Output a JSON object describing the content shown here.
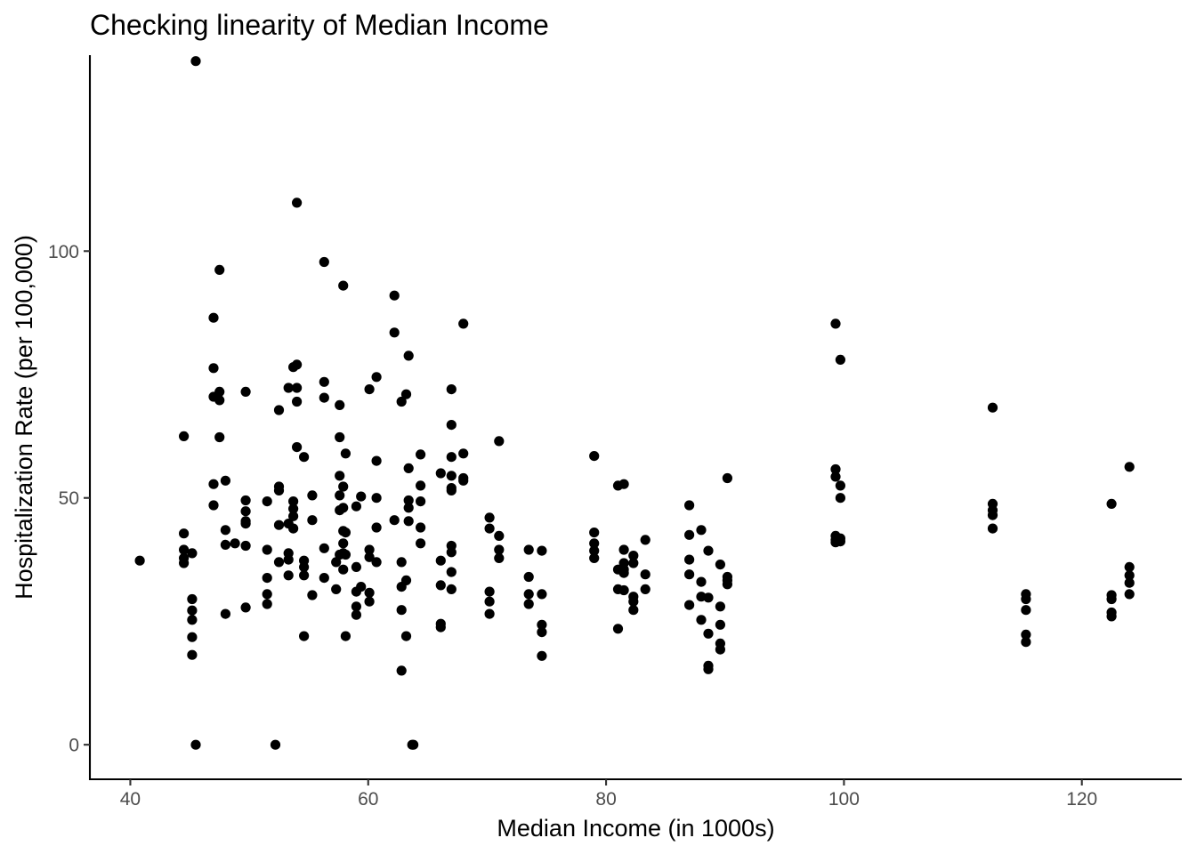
{
  "chart_data": {
    "type": "scatter",
    "title": "Checking linearity of Median Income",
    "xlabel": "Median Income (in 1000s)",
    "ylabel": "Hospitalization Rate (per 100,000)",
    "xlim": [
      36.6,
      128.4
    ],
    "ylim": [
      -7,
      139.7
    ],
    "xticks": [
      40,
      60,
      80,
      100,
      120
    ],
    "yticks": [
      0,
      50,
      100
    ],
    "grid": false,
    "legend": "none",
    "point_color": "#000000",
    "points": [
      [
        40.8,
        37.3
      ],
      [
        44.5,
        62.5
      ],
      [
        44.5,
        42.8
      ],
      [
        44.5,
        39.5
      ],
      [
        44.5,
        37.8
      ],
      [
        44.5,
        36.8
      ],
      [
        45.2,
        38.8
      ],
      [
        45.2,
        29.5
      ],
      [
        45.2,
        27.2
      ],
      [
        45.2,
        25.3
      ],
      [
        45.2,
        21.8
      ],
      [
        45.2,
        18.2
      ],
      [
        45.5,
        138.5
      ],
      [
        45.5,
        0
      ],
      [
        47.0,
        86.5
      ],
      [
        47.0,
        76.3
      ],
      [
        47.0,
        70.5
      ],
      [
        47.0,
        52.8
      ],
      [
        47.0,
        48.5
      ],
      [
        47.5,
        96.2
      ],
      [
        47.5,
        71.5
      ],
      [
        47.5,
        69.8
      ],
      [
        47.5,
        62.3
      ],
      [
        48.0,
        53.5
      ],
      [
        48.0,
        43.5
      ],
      [
        48.0,
        40.5
      ],
      [
        48.0,
        26.5
      ],
      [
        48.8,
        40.8
      ],
      [
        49.7,
        71.5
      ],
      [
        49.7,
        49.5
      ],
      [
        49.7,
        47.3
      ],
      [
        49.7,
        45.3
      ],
      [
        49.7,
        44.8
      ],
      [
        49.7,
        40.3
      ],
      [
        49.7,
        27.8
      ],
      [
        51.5,
        49.3
      ],
      [
        51.5,
        39.5
      ],
      [
        51.5,
        33.8
      ],
      [
        51.5,
        30.5
      ],
      [
        51.5,
        28.5
      ],
      [
        52.2,
        0
      ],
      [
        52.5,
        67.8
      ],
      [
        52.5,
        52.3
      ],
      [
        52.5,
        51.5
      ],
      [
        52.5,
        44.5
      ],
      [
        52.5,
        37.0
      ],
      [
        53.3,
        72.3
      ],
      [
        53.3,
        44.8
      ],
      [
        53.3,
        38.8
      ],
      [
        53.3,
        37.5
      ],
      [
        53.3,
        34.3
      ],
      [
        53.7,
        76.5
      ],
      [
        53.7,
        49.3
      ],
      [
        53.7,
        47.8
      ],
      [
        53.7,
        46.3
      ],
      [
        53.7,
        43.8
      ],
      [
        54.0,
        109.8
      ],
      [
        54.0,
        77.0
      ],
      [
        54.0,
        72.3
      ],
      [
        54.0,
        69.5
      ],
      [
        54.0,
        60.3
      ],
      [
        54.6,
        58.3
      ],
      [
        54.6,
        37.3
      ],
      [
        54.6,
        36.0
      ],
      [
        54.6,
        34.3
      ],
      [
        54.6,
        22.0
      ],
      [
        55.3,
        50.5
      ],
      [
        55.3,
        45.5
      ],
      [
        55.3,
        30.3
      ],
      [
        56.3,
        97.8
      ],
      [
        56.3,
        73.5
      ],
      [
        56.3,
        70.3
      ],
      [
        56.3,
        39.8
      ],
      [
        56.3,
        33.8
      ],
      [
        57.3,
        37.0
      ],
      [
        57.3,
        31.5
      ],
      [
        57.6,
        68.8
      ],
      [
        57.6,
        62.3
      ],
      [
        57.6,
        54.5
      ],
      [
        57.6,
        50.5
      ],
      [
        57.6,
        47.5
      ],
      [
        57.6,
        38.5
      ],
      [
        57.9,
        93.0
      ],
      [
        57.9,
        52.3
      ],
      [
        57.9,
        48.0
      ],
      [
        57.9,
        43.3
      ],
      [
        57.9,
        40.8
      ],
      [
        57.9,
        38.8
      ],
      [
        57.9,
        35.5
      ],
      [
        58.1,
        59.0
      ],
      [
        58.1,
        43.0
      ],
      [
        58.1,
        38.5
      ],
      [
        58.1,
        22.0
      ],
      [
        59.0,
        48.3
      ],
      [
        59.0,
        36.0
      ],
      [
        59.0,
        31.0
      ],
      [
        59.0,
        28.0
      ],
      [
        59.0,
        26.3
      ],
      [
        59.4,
        50.3
      ],
      [
        59.4,
        32.0
      ],
      [
        60.1,
        72.0
      ],
      [
        60.1,
        39.5
      ],
      [
        60.1,
        38.0
      ],
      [
        60.1,
        30.8
      ],
      [
        60.1,
        29.0
      ],
      [
        60.7,
        74.5
      ],
      [
        60.7,
        57.5
      ],
      [
        60.7,
        50.0
      ],
      [
        60.7,
        44.0
      ],
      [
        60.7,
        37.0
      ],
      [
        62.2,
        91.0
      ],
      [
        62.2,
        83.5
      ],
      [
        62.2,
        45.5
      ],
      [
        62.8,
        69.5
      ],
      [
        62.8,
        37.0
      ],
      [
        62.8,
        32.0
      ],
      [
        62.8,
        27.3
      ],
      [
        62.8,
        15.0
      ],
      [
        63.2,
        71.0
      ],
      [
        63.2,
        33.3
      ],
      [
        63.2,
        22.0
      ],
      [
        63.4,
        78.8
      ],
      [
        63.4,
        56.0
      ],
      [
        63.4,
        49.5
      ],
      [
        63.4,
        48.0
      ],
      [
        63.4,
        45.3
      ],
      [
        63.7,
        0
      ],
      [
        63.8,
        0
      ],
      [
        64.4,
        58.8
      ],
      [
        64.4,
        52.5
      ],
      [
        64.4,
        49.3
      ],
      [
        64.4,
        44.0
      ],
      [
        64.4,
        40.8
      ],
      [
        66.1,
        55.0
      ],
      [
        66.1,
        37.3
      ],
      [
        66.1,
        32.3
      ],
      [
        66.1,
        24.5
      ],
      [
        66.1,
        23.8
      ],
      [
        67.0,
        72.0
      ],
      [
        67.0,
        64.8
      ],
      [
        67.0,
        58.3
      ],
      [
        67.0,
        54.5
      ],
      [
        67.0,
        52.0
      ],
      [
        67.0,
        51.5
      ],
      [
        67.0,
        40.3
      ],
      [
        67.0,
        39.0
      ],
      [
        67.0,
        35.0
      ],
      [
        67.0,
        31.5
      ],
      [
        68.0,
        85.3
      ],
      [
        68.0,
        59.0
      ],
      [
        68.0,
        54.0
      ],
      [
        68.0,
        53.5
      ],
      [
        70.2,
        46.0
      ],
      [
        70.2,
        43.8
      ],
      [
        70.2,
        31.0
      ],
      [
        70.2,
        29.0
      ],
      [
        70.2,
        26.5
      ],
      [
        71.0,
        61.5
      ],
      [
        71.0,
        42.3
      ],
      [
        71.0,
        39.5
      ],
      [
        71.0,
        37.8
      ],
      [
        73.5,
        39.5
      ],
      [
        73.5,
        34.0
      ],
      [
        73.5,
        30.5
      ],
      [
        73.5,
        28.5
      ],
      [
        74.6,
        39.3
      ],
      [
        74.6,
        30.5
      ],
      [
        74.6,
        24.3
      ],
      [
        74.6,
        22.8
      ],
      [
        74.6,
        18.0
      ],
      [
        79.0,
        58.5
      ],
      [
        79.0,
        43.0
      ],
      [
        79.0,
        40.8
      ],
      [
        79.0,
        39.3
      ],
      [
        79.0,
        37.8
      ],
      [
        81.0,
        52.5
      ],
      [
        81.0,
        35.5
      ],
      [
        81.0,
        31.5
      ],
      [
        81.0,
        23.5
      ],
      [
        81.5,
        52.8
      ],
      [
        81.5,
        39.5
      ],
      [
        81.5,
        36.8
      ],
      [
        81.5,
        35.5
      ],
      [
        81.5,
        34.8
      ],
      [
        81.5,
        31.3
      ],
      [
        82.3,
        38.3
      ],
      [
        82.3,
        36.8
      ],
      [
        82.3,
        30.0
      ],
      [
        82.3,
        29.0
      ],
      [
        82.3,
        27.3
      ],
      [
        83.3,
        41.5
      ],
      [
        83.3,
        34.5
      ],
      [
        83.3,
        31.5
      ],
      [
        87.0,
        48.5
      ],
      [
        87.0,
        42.5
      ],
      [
        87.0,
        37.5
      ],
      [
        87.0,
        34.5
      ],
      [
        87.0,
        28.3
      ],
      [
        88.0,
        43.5
      ],
      [
        88.0,
        33.0
      ],
      [
        88.0,
        30.0
      ],
      [
        88.0,
        25.3
      ],
      [
        88.6,
        39.3
      ],
      [
        88.6,
        29.8
      ],
      [
        88.6,
        22.5
      ],
      [
        88.6,
        16.0
      ],
      [
        88.6,
        15.3
      ],
      [
        89.6,
        36.5
      ],
      [
        89.6,
        28.0
      ],
      [
        89.6,
        24.3
      ],
      [
        89.6,
        20.5
      ],
      [
        89.6,
        19.3
      ],
      [
        90.2,
        54.0
      ],
      [
        90.2,
        34.0
      ],
      [
        90.2,
        33.3
      ],
      [
        90.2,
        32.5
      ],
      [
        99.3,
        85.3
      ],
      [
        99.3,
        55.8
      ],
      [
        99.3,
        54.3
      ],
      [
        99.3,
        42.3
      ],
      [
        99.3,
        41.5
      ],
      [
        99.3,
        41.0
      ],
      [
        99.7,
        78.0
      ],
      [
        99.7,
        52.5
      ],
      [
        99.7,
        50.0
      ],
      [
        99.7,
        41.8
      ],
      [
        99.7,
        41.2
      ],
      [
        112.5,
        68.3
      ],
      [
        112.5,
        48.8
      ],
      [
        112.5,
        47.5
      ],
      [
        112.5,
        46.5
      ],
      [
        112.5,
        43.8
      ],
      [
        115.3,
        30.5
      ],
      [
        115.3,
        29.5
      ],
      [
        115.3,
        27.3
      ],
      [
        115.3,
        22.3
      ],
      [
        115.3,
        20.8
      ],
      [
        122.5,
        48.8
      ],
      [
        122.5,
        30.3
      ],
      [
        122.5,
        29.5
      ],
      [
        122.5,
        26.8
      ],
      [
        122.5,
        26.0
      ],
      [
        124.0,
        56.3
      ],
      [
        124.0,
        36.0
      ],
      [
        124.0,
        34.3
      ],
      [
        124.0,
        32.8
      ],
      [
        124.0,
        30.5
      ]
    ]
  }
}
